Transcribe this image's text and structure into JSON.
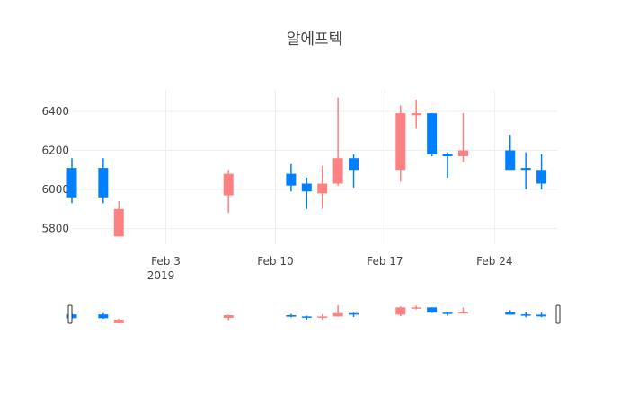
{
  "chart_data": {
    "type": "candlestick",
    "title": "알에프텍",
    "x_tick_labels": [
      "Feb 3",
      "Feb 10",
      "Feb 17",
      "Feb 24"
    ],
    "x_tick_dates": [
      "2019-02-03",
      "2019-02-10",
      "2019-02-17",
      "2019-02-24"
    ],
    "x_year_label": "2019",
    "y_tick_values": [
      5800,
      6000,
      6200,
      6400
    ],
    "x_range": [
      "2019-01-28",
      "2019-02-28"
    ],
    "ylim": [
      5720,
      6510
    ],
    "grid": true,
    "increasing_color": "#FF8080",
    "decreasing_color": "#0080FF",
    "range_slider": true,
    "candles": [
      {
        "date": "2019-01-28",
        "open": 6110,
        "high": 6160,
        "low": 5930,
        "close": 5960
      },
      {
        "date": "2019-01-30",
        "open": 6110,
        "high": 6160,
        "low": 5930,
        "close": 5960
      },
      {
        "date": "2019-01-31",
        "open": 5760,
        "high": 5940,
        "low": 5760,
        "close": 5900
      },
      {
        "date": "2019-02-07",
        "open": 5970,
        "high": 6100,
        "low": 5880,
        "close": 6080
      },
      {
        "date": "2019-02-11",
        "open": 6080,
        "high": 6130,
        "low": 5990,
        "close": 6020
      },
      {
        "date": "2019-02-12",
        "open": 6030,
        "high": 6060,
        "low": 5900,
        "close": 5990
      },
      {
        "date": "2019-02-13",
        "open": 5980,
        "high": 6120,
        "low": 5900,
        "close": 6030
      },
      {
        "date": "2019-02-14",
        "open": 6030,
        "high": 6470,
        "low": 6020,
        "close": 6160
      },
      {
        "date": "2019-02-15",
        "open": 6160,
        "high": 6180,
        "low": 6010,
        "close": 6100
      },
      {
        "date": "2019-02-18",
        "open": 6100,
        "high": 6430,
        "low": 6040,
        "close": 6390
      },
      {
        "date": "2019-02-19",
        "open": 6380,
        "high": 6460,
        "low": 6310,
        "close": 6390
      },
      {
        "date": "2019-02-20",
        "open": 6390,
        "high": 6390,
        "low": 6170,
        "close": 6180
      },
      {
        "date": "2019-02-21",
        "open": 6180,
        "high": 6190,
        "low": 6060,
        "close": 6170
      },
      {
        "date": "2019-02-22",
        "open": 6170,
        "high": 6390,
        "low": 6140,
        "close": 6200
      },
      {
        "date": "2019-02-25",
        "open": 6200,
        "high": 6280,
        "low": 6100,
        "close": 6100
      },
      {
        "date": "2019-02-26",
        "open": 6110,
        "high": 6190,
        "low": 6000,
        "close": 6100
      },
      {
        "date": "2019-02-27",
        "open": 6100,
        "high": 6180,
        "low": 6000,
        "close": 6030
      }
    ]
  }
}
